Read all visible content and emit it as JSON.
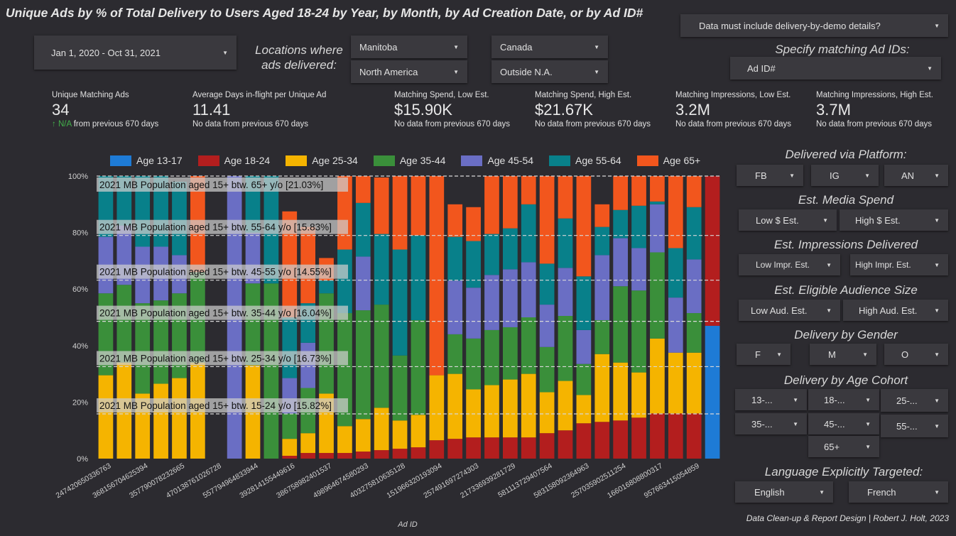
{
  "header": {
    "title": "Unique Ads by % of Total Delivery to Users Aged 18-24 by Year, by Month, by Ad Creation Date, or by Ad ID#"
  },
  "filters": {
    "date_range": "Jan 1, 2020 - Oct 31, 2021",
    "locations_label": "Locations where ads delivered:",
    "loc_manitoba": "Manitoba",
    "loc_canada": "Canada",
    "loc_north_america": "North America",
    "loc_outside_na": "Outside N.A.",
    "demo_details": "Data must include delivery-by-demo details?",
    "ad_ids_label": "Specify matching Ad IDs:",
    "ad_id": "Ad ID#"
  },
  "kpis": [
    {
      "label": "Unique Matching Ads",
      "value": "34",
      "na": "↑ N/A",
      "cmp": "from previous 670 days"
    },
    {
      "label": "Average Days in-flight per Unique Ad",
      "value": "11.41",
      "na": "",
      "cmp": "No data from previous 670 days"
    },
    {
      "label": "Matching Spend, Low Est.",
      "value": "$15.90K",
      "na": "",
      "cmp": "No data from previous 670 days"
    },
    {
      "label": "Matching Spend, High Est.",
      "value": "$21.67K",
      "na": "",
      "cmp": "No data from previous 670 days"
    },
    {
      "label": "Matching Impressions, Low Est.",
      "value": "3.2M",
      "na": "",
      "cmp": "No data from previous 670 days"
    },
    {
      "label": "Matching Impressions, High Est.",
      "value": "3.7M",
      "na": "",
      "cmp": "No data from previous 670 days"
    }
  ],
  "right_panel": {
    "platform_title": "Delivered via Platform:",
    "platform": [
      "FB",
      "IG",
      "AN"
    ],
    "spend_title": "Est. Media Spend",
    "spend": [
      "Low $ Est.",
      "High $ Est."
    ],
    "impr_title": "Est. Impressions Delivered",
    "impr": [
      "Low Impr. Est.",
      "High Impr. Est."
    ],
    "aud_title": "Est. Eligible Audience Size",
    "aud": [
      "Low Aud. Est.",
      "High Aud. Est."
    ],
    "gender_title": "Delivery by Gender",
    "gender": [
      "F",
      "M",
      "O"
    ],
    "age_title": "Delivery by Age Cohort",
    "age": [
      "13-...",
      "18-...",
      "25-...",
      "35-...",
      "45-...",
      "55-...",
      "65+"
    ],
    "lang_title": "Language Explicitly Targeted:",
    "lang": [
      "English",
      "French"
    ]
  },
  "footer": "Data Clean-up & Report Design | Robert J. Holt, 2023",
  "colors": {
    "age_13_17": "#1e7bd6",
    "age_18_24": "#b31e1e",
    "age_25_34": "#f5b400",
    "age_35_44": "#3a8f3a",
    "age_45_54": "#6a6ec4",
    "age_55_64": "#08808a",
    "age_65_plus": "#f2561d"
  },
  "chart_data": {
    "type": "bar",
    "stacked": true,
    "xlabel": "Ad ID",
    "ylabel": "",
    "ylim": [
      0,
      100
    ],
    "y_ticks": [
      "0%",
      "20%",
      "40%",
      "60%",
      "80%",
      "100%"
    ],
    "grid": false,
    "legend_position": "top",
    "x_tick_labels": [
      "247420650336763",
      "368156704625394",
      "357790078232665",
      "470138761026728",
      "557794964833944",
      "392814155449616",
      "386758982401537",
      "498964674580293",
      "403275810635128",
      "151966320193094",
      "257491697274303",
      "217336939281729",
      "581113729407564",
      "583158092364963",
      "257035902511254",
      "166016808800317",
      "957663415054859"
    ],
    "series": [
      {
        "name": "Age 13-17",
        "color": "#1e7bd6",
        "values": [
          0,
          0,
          0,
          0,
          0,
          0,
          0,
          0,
          0,
          0,
          0,
          0,
          0,
          0,
          0,
          0,
          0,
          0,
          0,
          0,
          0,
          0,
          0,
          0,
          0,
          0,
          0,
          0,
          0,
          0,
          0,
          0,
          0,
          47
        ]
      },
      {
        "name": "Age 18-24",
        "color": "#b31e1e",
        "values": [
          0,
          0,
          0,
          0,
          0,
          0,
          0,
          0,
          0,
          0,
          1,
          2,
          2,
          2,
          2.5,
          3,
          3.5,
          4,
          6.5,
          7,
          7.5,
          7.5,
          7.5,
          7.5,
          9,
          10,
          12.5,
          13,
          13.5,
          14.5,
          16,
          16,
          16,
          53
        ]
      },
      {
        "name": "Age 25-34",
        "color": "#f5b400",
        "values": [
          29.5,
          34,
          23,
          26.5,
          28.5,
          34,
          0,
          0,
          33,
          0,
          6,
          7,
          21,
          9.5,
          11.5,
          15,
          10,
          11.5,
          23,
          23,
          17,
          18.5,
          20.5,
          22.5,
          14.5,
          17.5,
          10,
          24,
          20.5,
          16,
          26.5,
          21.5,
          21.5,
          0
        ]
      },
      {
        "name": "Age 35-44",
        "color": "#3a8f3a",
        "values": [
          29,
          27.5,
          32,
          29.5,
          30,
          32,
          0,
          0,
          29,
          62,
          9,
          16,
          35.5,
          40,
          38.5,
          36.5,
          23,
          33.5,
          0,
          14,
          18,
          19.5,
          18.5,
          20,
          16,
          23,
          11,
          12,
          27,
          29,
          30.5,
          0,
          14,
          0
        ]
      },
      {
        "name": "Age 45-54",
        "color": "#6a6ec4",
        "values": [
          20,
          21,
          20,
          19,
          13.5,
          0,
          0,
          100,
          18,
          0,
          12.5,
          16,
          0,
          0,
          19,
          0,
          0,
          0,
          0,
          19,
          18,
          19.5,
          20.5,
          19.5,
          15,
          17,
          12,
          23,
          17,
          15,
          17,
          19.5,
          19,
          0
        ]
      },
      {
        "name": "Age 55-64",
        "color": "#08808a",
        "values": [
          21.5,
          17.5,
          25,
          25,
          26,
          0,
          0,
          0,
          20,
          38,
          21.5,
          14,
          4.5,
          22.5,
          19,
          25,
          37.5,
          30,
          0,
          15.5,
          16.5,
          14.5,
          14.5,
          20.5,
          14.5,
          17.5,
          19,
          10,
          10,
          15,
          1,
          17.5,
          18.5,
          0
        ]
      },
      {
        "name": "Age 65+",
        "color": "#f2561d",
        "values": [
          0,
          0,
          0,
          0,
          0,
          34,
          0,
          0,
          0,
          0,
          37.5,
          27,
          8,
          26,
          9.5,
          20,
          26,
          21,
          70.5,
          11.5,
          12,
          20.5,
          18.5,
          10,
          31,
          15,
          35.5,
          8,
          12,
          10.5,
          9,
          25.5,
          11,
          0
        ]
      }
    ],
    "reference_lines": [
      {
        "label": "2021 MB Population aged 15+ btw. 65+ y/o [21.03%]",
        "y": 100
      },
      {
        "label": "2021 MB Population aged 15+ btw. 55-64 y/o [15.83%]",
        "y": 78.97
      },
      {
        "label": "2021 MB Population aged 15+ btw. 45-55 y/o [14.55%]",
        "y": 63.14
      },
      {
        "label": "2021 MB Population aged 15+ btw. 35-44 y/o [16.04%]",
        "y": 48.59
      },
      {
        "label": "2021 MB Population aged 15+ btw. 25-34 y/o [16.73%]",
        "y": 32.55
      },
      {
        "label": "2021 MB Population aged 15+ btw. 15-24 y/o [15.82%]",
        "y": 15.82
      }
    ]
  }
}
